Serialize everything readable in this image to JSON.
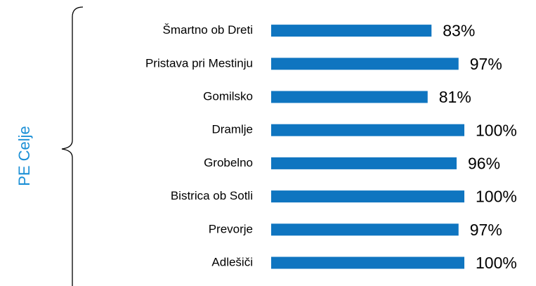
{
  "chart_data": {
    "type": "bar",
    "orientation": "horizontal",
    "group_label": "PE Celje",
    "categories": [
      "Šmartno ob Dreti",
      "Pristava pri Mestinju",
      "Gomilsko",
      "Dramlje",
      "Grobelno",
      "Bistrica ob Sotli",
      "Prevorje",
      "Adlešiči"
    ],
    "values": [
      83,
      97,
      81,
      100,
      96,
      100,
      97,
      100
    ],
    "value_labels": [
      "83%",
      "97%",
      "81%",
      "100%",
      "96%",
      "100%",
      "97%",
      "100%"
    ],
    "color": "#0f75c0",
    "xlim": [
      0,
      100
    ]
  }
}
